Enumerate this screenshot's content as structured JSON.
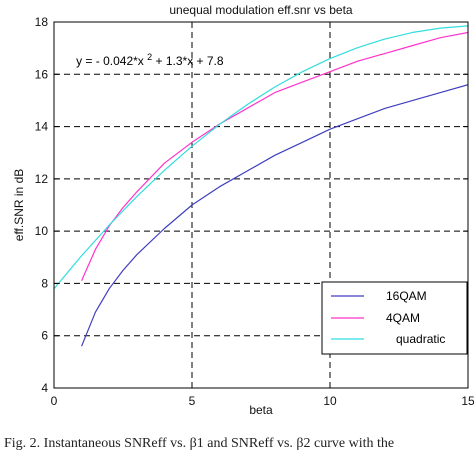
{
  "chart_data": {
    "type": "line",
    "title": "unequal modulation eff.snr vs beta",
    "xlabel": "beta",
    "ylabel": "eff.SNR in dB",
    "xlim": [
      0,
      15
    ],
    "ylim": [
      4,
      18
    ],
    "xticks": [
      0,
      5,
      10,
      15
    ],
    "yticks": [
      4,
      6,
      8,
      10,
      12,
      14,
      16,
      18
    ],
    "grid": true,
    "grid_style": "dashed",
    "legend_position": "bottom-right",
    "annotation": {
      "text_parts": [
        "y = - 0.042*x",
        "2",
        " + 1.3*x + 7.8"
      ],
      "x": 0.8,
      "y": 16.5
    },
    "series": [
      {
        "name": "16QAM",
        "color": "#3f3fbf",
        "x": [
          1,
          1.5,
          2,
          2.5,
          3,
          4,
          5,
          6,
          7,
          8,
          9,
          10,
          11,
          12,
          13,
          14,
          15
        ],
        "y": [
          5.6,
          6.9,
          7.8,
          8.5,
          9.1,
          10.1,
          11.0,
          11.7,
          12.3,
          12.9,
          13.4,
          13.9,
          14.3,
          14.7,
          15.0,
          15.3,
          15.6
        ]
      },
      {
        "name": "4QAM",
        "color": "#ff33cc",
        "x": [
          1,
          1.5,
          2,
          2.5,
          3,
          4,
          5,
          6,
          7,
          8,
          9,
          10,
          11,
          12,
          13,
          14,
          15
        ],
        "y": [
          8.1,
          9.3,
          10.2,
          10.9,
          11.5,
          12.6,
          13.4,
          14.1,
          14.7,
          15.3,
          15.7,
          16.1,
          16.5,
          16.8,
          17.1,
          17.4,
          17.6
        ]
      },
      {
        "name": "quadratic",
        "color": "#33dddd",
        "x": [
          0,
          1,
          2,
          3,
          4,
          5,
          6,
          7,
          8,
          9,
          10,
          11,
          12,
          13,
          14,
          15
        ],
        "y": [
          7.8,
          9.058,
          10.232,
          11.322,
          12.328,
          13.25,
          14.088,
          14.842,
          15.512,
          16.098,
          16.6,
          17.018,
          17.352,
          17.602,
          17.768,
          17.85
        ]
      }
    ]
  },
  "caption": "Fig. 2. Instantaneous SNReff vs. β1 and SNReff vs. β2 curve with the"
}
